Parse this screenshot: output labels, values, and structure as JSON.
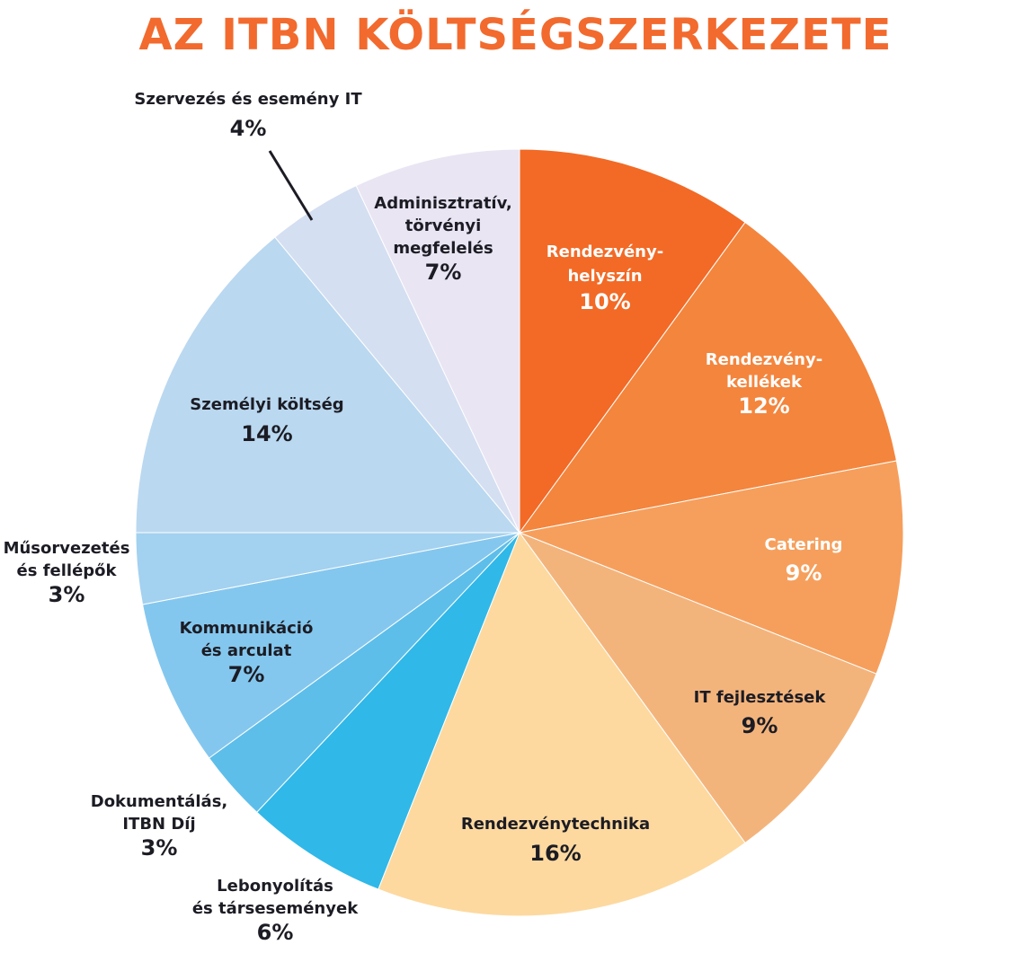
{
  "title": "AZ ITBN KÖLTSÉGSZERKEZETE",
  "chart_data": {
    "type": "pie",
    "title": "AZ ITBN KÖLTSÉGSZERKEZETE",
    "legend": "none",
    "slices": [
      {
        "label_lines": [
          "Rendezvény-",
          "helyszín"
        ],
        "value": 10,
        "percent_label": "10%",
        "color": "#f26a26"
      },
      {
        "label_lines": [
          "Rendezvény-",
          "kellékek"
        ],
        "value": 12,
        "percent_label": "12%",
        "color": "#f4853d"
      },
      {
        "label_lines": [
          "Catering"
        ],
        "value": 9,
        "percent_label": "9%",
        "color": "#f69f5c"
      },
      {
        "label_lines": [
          "IT fejlesztések"
        ],
        "value": 9,
        "percent_label": "9%",
        "color": "#f3b47c"
      },
      {
        "label_lines": [
          "Rendezvénytechnika"
        ],
        "value": 16,
        "percent_label": "16%",
        "color": "#fdd9a0"
      },
      {
        "label_lines": [
          "Lebonyolítás",
          "és társesemények"
        ],
        "value": 6,
        "percent_label": "6%",
        "color": "#30b8e8"
      },
      {
        "label_lines": [
          "Dokumentálás,",
          "ITBN Díj"
        ],
        "value": 3,
        "percent_label": "3%",
        "color": "#5dbeea"
      },
      {
        "label_lines": [
          "Kommunikáció",
          "és arculat"
        ],
        "value": 7,
        "percent_label": "7%",
        "color": "#84c7ee"
      },
      {
        "label_lines": [
          "Műsorvezetés",
          "és fellépők"
        ],
        "value": 3,
        "percent_label": "3%",
        "color": "#a3d1f0"
      },
      {
        "label_lines": [
          "Személyi költség"
        ],
        "value": 14,
        "percent_label": "14%",
        "color": "#bad8f0"
      },
      {
        "label_lines": [
          "Szervezés és esemény IT"
        ],
        "value": 4,
        "percent_label": "4%",
        "color": "#d4dff1"
      },
      {
        "label_lines": [
          "Adminisztratív,",
          "törvényi",
          "megfelelés"
        ],
        "value": 7,
        "percent_label": "7%",
        "color": "#e9e5f3"
      }
    ]
  }
}
